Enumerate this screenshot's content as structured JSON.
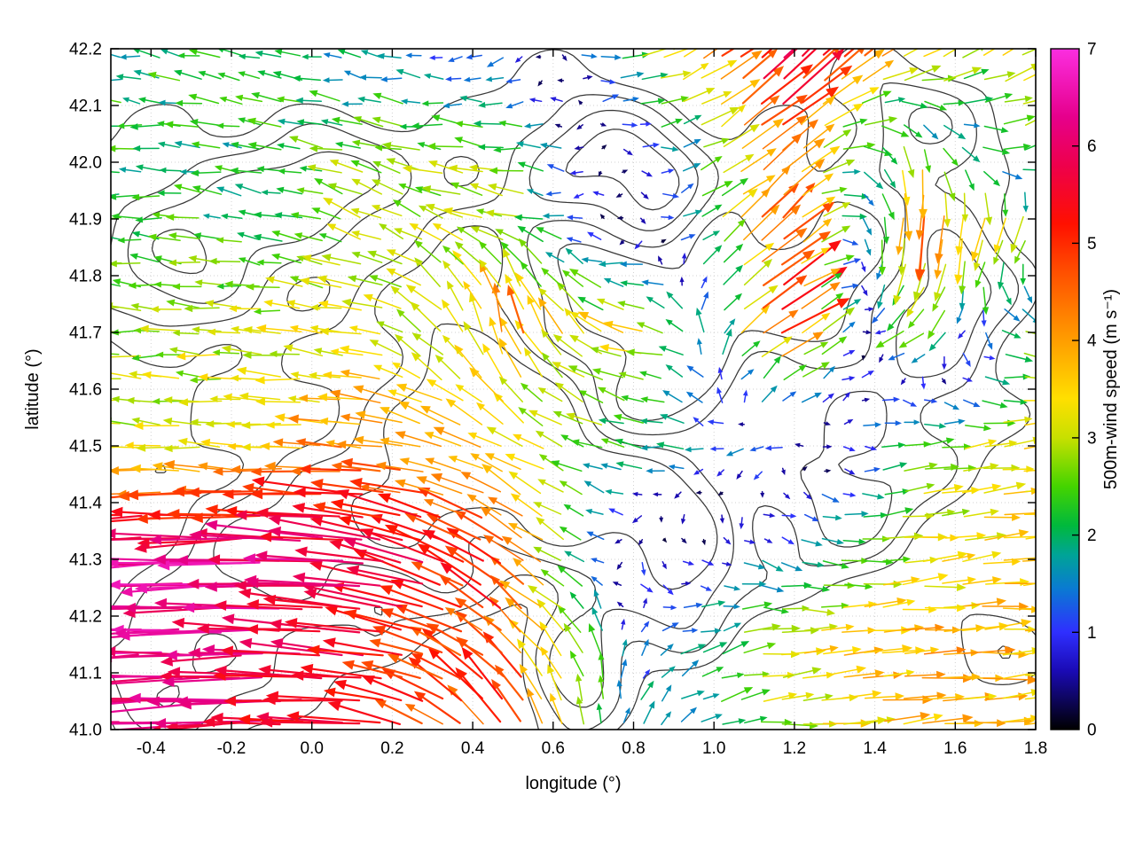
{
  "figure": {
    "background": "#ffffff",
    "plot_border_color": "#000000",
    "contour_color": "#383838",
    "grid_color": "#d2d2d2"
  },
  "chart_data": {
    "type": "quiver_contour_map",
    "title": "",
    "xlabel": "longitude (°)",
    "ylabel": "latitude (°)",
    "xlim": [
      -0.5,
      1.8
    ],
    "ylim": [
      41.0,
      42.2
    ],
    "xticks": [
      -0.4,
      -0.2,
      0.0,
      0.2,
      0.4,
      0.6,
      0.8,
      1.0,
      1.2,
      1.4,
      1.6,
      1.8
    ],
    "xtick_labels": [
      "-0.4",
      "-0.2",
      "0.0",
      "0.2",
      "0.4",
      "0.6",
      "0.8",
      "1.0",
      "1.2",
      "1.4",
      "1.6",
      "1.8"
    ],
    "yticks": [
      41.0,
      41.1,
      41.2,
      41.3,
      41.4,
      41.5,
      41.6,
      41.7,
      41.8,
      41.9,
      42.0,
      42.1,
      42.2
    ],
    "ytick_labels": [
      "41.0",
      "41.1",
      "41.2",
      "41.3",
      "41.4",
      "41.5",
      "41.6",
      "41.7",
      "41.8",
      "41.9",
      "42.0",
      "42.1",
      "42.2"
    ],
    "grid": "dotted",
    "legend": "none",
    "colorbar": {
      "label": "500m-wind speed (m s⁻¹)",
      "min": 0,
      "max": 7,
      "ticks": [
        0,
        1,
        2,
        3,
        4,
        5,
        6,
        7
      ],
      "tick_labels": [
        "0",
        "1",
        "2",
        "3",
        "4",
        "5",
        "6",
        "7"
      ],
      "stops": [
        [
          0.0,
          "#000000"
        ],
        [
          0.6,
          "#1a0ab4"
        ],
        [
          1.0,
          "#2f2fff"
        ],
        [
          1.45,
          "#0a7ad2"
        ],
        [
          1.8,
          "#00a496"
        ],
        [
          2.1,
          "#00b93c"
        ],
        [
          2.5,
          "#44d400"
        ],
        [
          3.0,
          "#c8e000"
        ],
        [
          3.4,
          "#ffdf00"
        ],
        [
          4.0,
          "#ff9e00"
        ],
        [
          4.7,
          "#ff5000"
        ],
        [
          5.2,
          "#ff1000"
        ],
        [
          5.8,
          "#ee004c"
        ],
        [
          6.3,
          "#e6008c"
        ],
        [
          7.0,
          "#fb2ee0"
        ]
      ]
    },
    "wind_grid": {
      "lons": [
        -0.5,
        -0.17,
        0.16,
        0.5,
        0.83,
        1.16,
        1.5,
        1.8
      ],
      "lats": [
        41.0,
        41.15,
        41.3,
        41.5,
        41.7,
        41.9,
        42.0,
        42.2
      ],
      "uv": [
        [
          [
            -6.2,
            -0.4
          ],
          [
            -6.0,
            -0.3
          ],
          [
            -5.2,
            0.6
          ],
          [
            -2.5,
            4.5
          ],
          [
            0.9,
            1.3
          ],
          [
            3.0,
            0.3
          ],
          [
            3.8,
            0.3
          ],
          [
            3.5,
            0.2
          ]
        ],
        [
          [
            -6.3,
            -0.3
          ],
          [
            -6.1,
            0.0
          ],
          [
            -5.5,
            0.6
          ],
          [
            -3.5,
            3.2
          ],
          [
            0.8,
            1.0
          ],
          [
            3.2,
            0.2
          ],
          [
            4.0,
            0.3
          ],
          [
            3.6,
            0.2
          ]
        ],
        [
          [
            -6.5,
            -0.3
          ],
          [
            -6.5,
            -0.2
          ],
          [
            -6.0,
            0.8
          ],
          [
            -4.2,
            3.0
          ],
          [
            0.5,
            -0.8
          ],
          [
            1.5,
            -0.4
          ],
          [
            3.2,
            0.3
          ],
          [
            3.8,
            0.3
          ]
        ],
        [
          [
            -2.9,
            0.1
          ],
          [
            -3.3,
            0.2
          ],
          [
            -4.3,
            0.5
          ],
          [
            -3.0,
            1.6
          ],
          [
            -2.0,
            0.3
          ],
          [
            -0.8,
            -0.4
          ],
          [
            2.5,
            0.4
          ],
          [
            3.4,
            0.4
          ]
        ],
        [
          [
            -2.6,
            0.2
          ],
          [
            -3.0,
            0.1
          ],
          [
            -3.2,
            0.5
          ],
          [
            -0.8,
            4.2
          ],
          [
            -3.8,
            0.5
          ],
          [
            4.5,
            2.8
          ],
          [
            -2.5,
            -1.4
          ],
          [
            3.0,
            -0.5
          ]
        ],
        [
          [
            -2.2,
            0.1
          ],
          [
            -2.2,
            0.3
          ],
          [
            -2.5,
            1.2
          ],
          [
            -2.8,
            0.8
          ],
          [
            0.5,
            -0.6
          ],
          [
            3.6,
            3.6
          ],
          [
            -0.5,
            -4.5
          ],
          [
            -1.6,
            -3.0
          ]
        ],
        [
          [
            -2.2,
            0.2
          ],
          [
            -2.0,
            0.3
          ],
          [
            -2.6,
            0.6
          ],
          [
            -2.8,
            0.4
          ],
          [
            0.8,
            -0.4
          ],
          [
            3.5,
            3.0
          ],
          [
            0.5,
            -3.5
          ],
          [
            2.5,
            1.0
          ]
        ],
        [
          [
            -2.0,
            0.3
          ],
          [
            -2.2,
            0.4
          ],
          [
            -1.5,
            0.3
          ],
          [
            -0.8,
            -0.6
          ],
          [
            3.0,
            0.8
          ],
          [
            4.5,
            4.0
          ],
          [
            3.0,
            2.0
          ],
          [
            2.8,
            1.5
          ]
        ]
      ]
    },
    "arrow_grid": {
      "lon0": -0.478,
      "dlon": 0.05,
      "cols": 46,
      "lat0": 41.012,
      "dlat": 0.0405,
      "rows": 30
    },
    "contours": {
      "levels": [
        0.4,
        0.65,
        0.9,
        1.15
      ],
      "bumps": [
        [
          -0.32,
          41.85,
          1.1,
          0.28,
          0.2
        ],
        [
          0.02,
          41.98,
          0.8,
          0.2,
          0.13
        ],
        [
          0.38,
          41.72,
          1.0,
          0.25,
          0.28
        ],
        [
          0.7,
          42.03,
          1.1,
          0.22,
          0.13
        ],
        [
          0.88,
          41.92,
          0.9,
          0.13,
          0.11
        ],
        [
          0.55,
          41.52,
          0.9,
          0.2,
          0.14
        ],
        [
          0.78,
          41.42,
          0.9,
          0.28,
          0.13
        ],
        [
          0.92,
          41.28,
          1.1,
          0.16,
          0.16
        ],
        [
          0.66,
          41.12,
          1.0,
          0.13,
          0.2
        ],
        [
          0.28,
          41.33,
          0.8,
          0.22,
          0.16
        ],
        [
          -0.12,
          41.28,
          0.9,
          0.28,
          0.22
        ],
        [
          -0.38,
          41.08,
          0.8,
          0.22,
          0.13
        ],
        [
          1.32,
          41.45,
          1.0,
          0.22,
          0.22
        ],
        [
          1.58,
          41.78,
          1.0,
          0.2,
          0.28
        ],
        [
          1.15,
          41.97,
          0.7,
          0.13,
          0.1
        ],
        [
          1.72,
          41.12,
          0.6,
          0.16,
          0.1
        ],
        [
          1.08,
          41.63,
          0.6,
          0.11,
          0.11
        ],
        [
          1.45,
          42.1,
          0.7,
          0.2,
          0.1
        ],
        [
          0.15,
          41.55,
          0.5,
          0.3,
          0.2
        ]
      ]
    }
  }
}
